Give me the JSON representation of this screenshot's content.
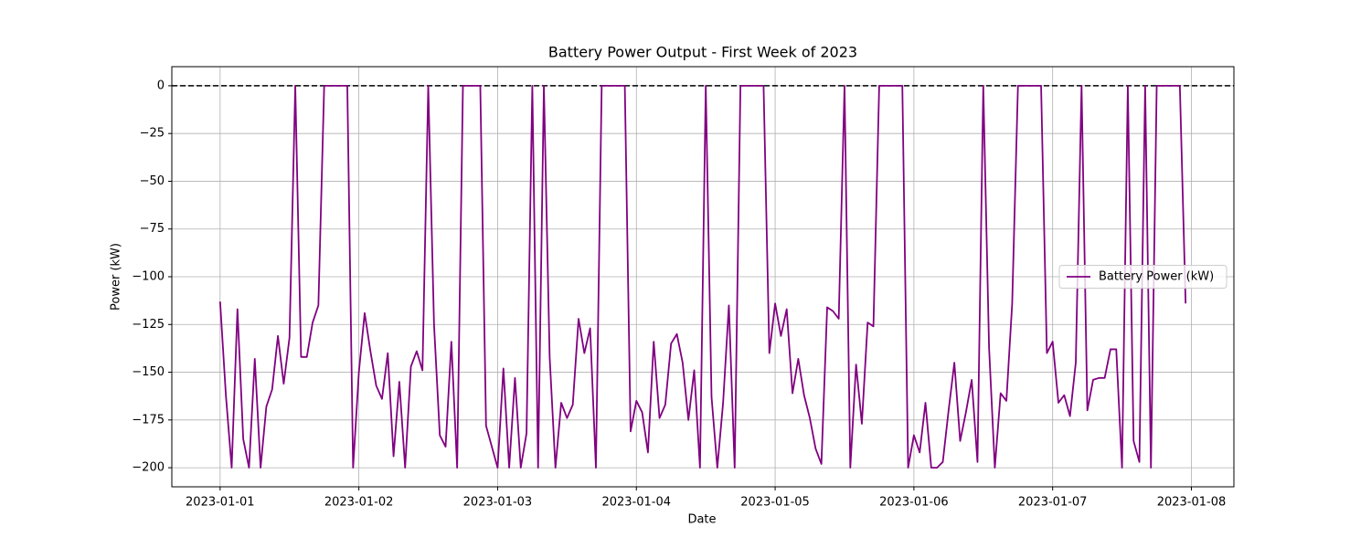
{
  "chart_data": {
    "type": "line",
    "title": "Battery Power Output - First Week of 2023",
    "x_label": "Date",
    "y_label": "Power (kW)",
    "x": [
      "2023-01-01 00:00",
      "2023-01-01 01:00",
      "2023-01-01 02:00",
      "2023-01-01 03:00",
      "2023-01-01 04:00",
      "2023-01-01 05:00",
      "2023-01-01 06:00",
      "2023-01-01 07:00",
      "2023-01-01 08:00",
      "2023-01-01 09:00",
      "2023-01-01 10:00",
      "2023-01-01 11:00",
      "2023-01-01 12:00",
      "2023-01-01 13:00",
      "2023-01-01 14:00",
      "2023-01-01 15:00",
      "2023-01-01 16:00",
      "2023-01-01 17:00",
      "2023-01-01 18:00",
      "2023-01-01 19:00",
      "2023-01-01 20:00",
      "2023-01-01 21:00",
      "2023-01-01 22:00",
      "2023-01-01 23:00",
      "2023-01-02 00:00",
      "2023-01-02 01:00",
      "2023-01-02 02:00",
      "2023-01-02 03:00",
      "2023-01-02 04:00",
      "2023-01-02 05:00",
      "2023-01-02 06:00",
      "2023-01-02 07:00",
      "2023-01-02 08:00",
      "2023-01-02 09:00",
      "2023-01-02 10:00",
      "2023-01-02 11:00",
      "2023-01-02 12:00",
      "2023-01-02 13:00",
      "2023-01-02 14:00",
      "2023-01-02 15:00",
      "2023-01-02 16:00",
      "2023-01-02 17:00",
      "2023-01-02 18:00",
      "2023-01-02 19:00",
      "2023-01-02 20:00",
      "2023-01-02 21:00",
      "2023-01-02 22:00",
      "2023-01-02 23:00",
      "2023-01-03 00:00",
      "2023-01-03 01:00",
      "2023-01-03 02:00",
      "2023-01-03 03:00",
      "2023-01-03 04:00",
      "2023-01-03 05:00",
      "2023-01-03 06:00",
      "2023-01-03 07:00",
      "2023-01-03 08:00",
      "2023-01-03 09:00",
      "2023-01-03 10:00",
      "2023-01-03 11:00",
      "2023-01-03 12:00",
      "2023-01-03 13:00",
      "2023-01-03 14:00",
      "2023-01-03 15:00",
      "2023-01-03 16:00",
      "2023-01-03 17:00",
      "2023-01-03 18:00",
      "2023-01-03 19:00",
      "2023-01-03 20:00",
      "2023-01-03 21:00",
      "2023-01-03 22:00",
      "2023-01-03 23:00",
      "2023-01-04 00:00",
      "2023-01-04 01:00",
      "2023-01-04 02:00",
      "2023-01-04 03:00",
      "2023-01-04 04:00",
      "2023-01-04 05:00",
      "2023-01-04 06:00",
      "2023-01-04 07:00",
      "2023-01-04 08:00",
      "2023-01-04 09:00",
      "2023-01-04 10:00",
      "2023-01-04 11:00",
      "2023-01-04 12:00",
      "2023-01-04 13:00",
      "2023-01-04 14:00",
      "2023-01-04 15:00",
      "2023-01-04 16:00",
      "2023-01-04 17:00",
      "2023-01-04 18:00",
      "2023-01-04 19:00",
      "2023-01-04 20:00",
      "2023-01-04 21:00",
      "2023-01-04 22:00",
      "2023-01-04 23:00",
      "2023-01-05 00:00",
      "2023-01-05 01:00",
      "2023-01-05 02:00",
      "2023-01-05 03:00",
      "2023-01-05 04:00",
      "2023-01-05 05:00",
      "2023-01-05 06:00",
      "2023-01-05 07:00",
      "2023-01-05 08:00",
      "2023-01-05 09:00",
      "2023-01-05 10:00",
      "2023-01-05 11:00",
      "2023-01-05 12:00",
      "2023-01-05 13:00",
      "2023-01-05 14:00",
      "2023-01-05 15:00",
      "2023-01-05 16:00",
      "2023-01-05 17:00",
      "2023-01-05 18:00",
      "2023-01-05 19:00",
      "2023-01-05 20:00",
      "2023-01-05 21:00",
      "2023-01-05 22:00",
      "2023-01-05 23:00",
      "2023-01-06 00:00",
      "2023-01-06 01:00",
      "2023-01-06 02:00",
      "2023-01-06 03:00",
      "2023-01-06 04:00",
      "2023-01-06 05:00",
      "2023-01-06 06:00",
      "2023-01-06 07:00",
      "2023-01-06 08:00",
      "2023-01-06 09:00",
      "2023-01-06 10:00",
      "2023-01-06 11:00",
      "2023-01-06 12:00",
      "2023-01-06 13:00",
      "2023-01-06 14:00",
      "2023-01-06 15:00",
      "2023-01-06 16:00",
      "2023-01-06 17:00",
      "2023-01-06 18:00",
      "2023-01-06 19:00",
      "2023-01-06 20:00",
      "2023-01-06 21:00",
      "2023-01-06 22:00",
      "2023-01-06 23:00",
      "2023-01-07 00:00",
      "2023-01-07 01:00",
      "2023-01-07 02:00",
      "2023-01-07 03:00",
      "2023-01-07 04:00",
      "2023-01-07 05:00",
      "2023-01-07 06:00",
      "2023-01-07 07:00",
      "2023-01-07 08:00",
      "2023-01-07 09:00",
      "2023-01-07 10:00",
      "2023-01-07 11:00",
      "2023-01-07 12:00",
      "2023-01-07 13:00",
      "2023-01-07 14:00",
      "2023-01-07 15:00",
      "2023-01-07 16:00",
      "2023-01-07 17:00",
      "2023-01-07 18:00",
      "2023-01-07 19:00",
      "2023-01-07 20:00",
      "2023-01-07 21:00",
      "2023-01-07 22:00",
      "2023-01-07 23:00"
    ],
    "series": [
      {
        "name": "Battery Power (kW)",
        "color": "#800080",
        "values": [
          -113,
          -162,
          -200,
          -117,
          -185,
          -200,
          -143,
          -200,
          -168,
          -159,
          -131,
          -156,
          -132,
          0,
          -142,
          -142,
          -124,
          -115,
          0,
          0,
          0,
          0,
          0,
          -200,
          -150,
          -119,
          -139,
          -157,
          -164,
          -140,
          -194,
          -155,
          -200,
          -147,
          -139,
          -149,
          0,
          -125,
          -183,
          -189,
          -134,
          -200,
          0,
          0,
          0,
          0,
          -178,
          -189,
          -200,
          -148,
          -200,
          -153,
          -200,
          -182,
          0,
          -200,
          0,
          -142,
          -200,
          -166,
          -174,
          -167,
          -122,
          -140,
          -127,
          -200,
          0,
          0,
          0,
          0,
          0,
          -181,
          -165,
          -171,
          -192,
          -134,
          -174,
          -167,
          -135,
          -130,
          -145,
          -175,
          -149,
          -200,
          0,
          -163,
          -200,
          -166,
          -115,
          -200,
          0,
          0,
          0,
          0,
          0,
          -140,
          -114,
          -131,
          -117,
          -161,
          -143,
          -162,
          -174,
          -190,
          -198,
          -116,
          -118,
          -122,
          0,
          -200,
          -146,
          -177,
          -124,
          -126,
          0,
          0,
          0,
          0,
          0,
          -200,
          -183,
          -192,
          -166,
          -200,
          -200,
          -197,
          -170,
          -145,
          -186,
          -171,
          -154,
          -197,
          0,
          -137,
          -200,
          -161,
          -165,
          -114,
          0,
          0,
          0,
          0,
          0,
          -140,
          -134,
          -166,
          -162,
          -173,
          -145,
          0,
          -170,
          -154,
          -153,
          -153,
          -138,
          -138,
          -200,
          0,
          -186,
          -197,
          0,
          -200,
          0,
          0,
          0,
          0,
          0,
          -114
        ]
      }
    ],
    "reference_line": 0,
    "xlim": [
      "2022-12-31 15:39",
      "2023-01-08 07:21"
    ],
    "xticks": [
      "2023-01-01",
      "2023-01-02",
      "2023-01-03",
      "2023-01-04",
      "2023-01-05",
      "2023-01-06",
      "2023-01-07",
      "2023-01-08"
    ],
    "ylim": [
      -210,
      10
    ],
    "yticks": [
      0,
      {
        "value": -25,
        "label": "−25"
      },
      {
        "value": -50,
        "label": "−50"
      },
      {
        "value": -75,
        "label": "−75"
      },
      {
        "value": -100,
        "label": "−100"
      },
      {
        "value": -125,
        "label": "−125"
      },
      {
        "value": -150,
        "label": "−150"
      },
      {
        "value": -175,
        "label": "−175"
      },
      {
        "value": -200,
        "label": "−200"
      }
    ],
    "grid": true,
    "legend": "center right"
  }
}
